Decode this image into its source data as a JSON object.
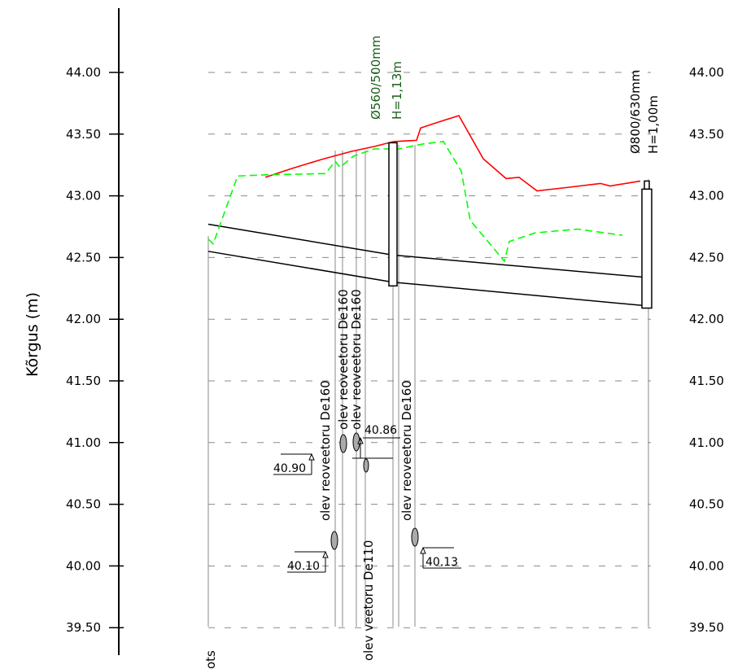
{
  "chart_data": {
    "type": "profile",
    "ylabel": "Kõrgus (m)",
    "ylim": [
      39.5,
      44.5
    ],
    "y_ticks": [
      39.5,
      40.0,
      40.5,
      41.0,
      41.5,
      42.0,
      42.5,
      43.0,
      43.5,
      44.0
    ],
    "y_tick_labels_left": [
      "39.50",
      "40.00",
      "40.50",
      "41.00",
      "41.50",
      "42.00",
      "42.50",
      "43.00",
      "43.50",
      "44.00"
    ],
    "y_tick_labels_right": [
      "39.50",
      "40.00",
      "40.50",
      "41.00",
      "41.50",
      "42.00",
      "42.50",
      "43.00",
      "43.50",
      "44.00"
    ],
    "grid": "horizontal-dashed",
    "manholes": [
      {
        "label_line1": "Ø560/500mm",
        "label_line2": "H=1,13m",
        "top": 43.43,
        "bottom": 42.27,
        "color": "#1a5e1a"
      },
      {
        "label_line1": "Ø800/630mm",
        "label_line2": "H=1,00m",
        "top": 43.12,
        "bottom": 42.09,
        "color": "#000000"
      }
    ],
    "pipe_top_line": {
      "start": 42.77,
      "mid": 42.52,
      "end": 42.34
    },
    "pipe_bottom_line": {
      "start": 42.55,
      "mid": 42.3,
      "end": 42.11
    },
    "crossings": [
      {
        "label": "olev reoveetoru De160",
        "elevation_label": "40.10"
      },
      {
        "label": "olev reoveetoru De160",
        "elevation_label": "40.90"
      },
      {
        "label": "olev reoveetoru De160",
        "elevation_label": "40.86"
      },
      {
        "label": "olev veetoru De110",
        "elevation_label": ""
      },
      {
        "label": "olev reoveetoru De160",
        "elevation_label": "40.13"
      }
    ],
    "series": [
      {
        "name": "",
        "style": "solid",
        "color": "#ff0000",
        "y": [
          43.15,
          43.22,
          43.3,
          43.36,
          43.4,
          43.44,
          43.45,
          43.55,
          43.6,
          43.65,
          43.3,
          43.14,
          43.15,
          43.04,
          43.07,
          43.1,
          43.08,
          43.12
        ]
      },
      {
        "name": "",
        "style": "dashed",
        "color": "#00ff00",
        "y": [
          42.65,
          42.61,
          43.16,
          43.17,
          43.18,
          43.28,
          43.23,
          43.32,
          43.38,
          43.38,
          43.42,
          43.44,
          43.2,
          42.8,
          42.47,
          42.63,
          42.7,
          42.73,
          42.68
        ]
      }
    ],
    "bottom_cut_text": "ots"
  }
}
